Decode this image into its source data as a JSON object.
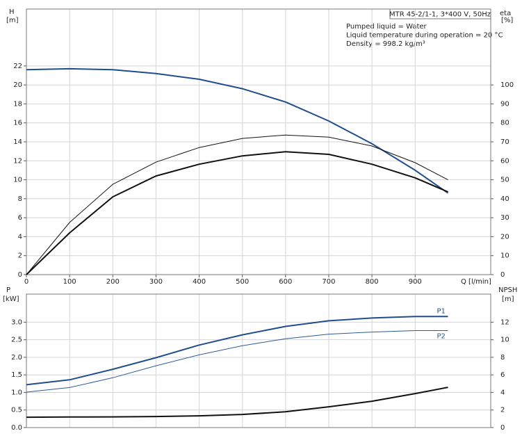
{
  "chart_data": [
    {
      "type": "line",
      "title": "MTR 45-2/1-1, 3*400 V, 50Hz",
      "annotations": [
        "Pumped liquid = Water",
        "Liquid temperature during operation = 20 °C",
        "Density = 998.2 kg/m³"
      ],
      "ylabel": [
        "H",
        "[m]"
      ],
      "y2label": [
        "eta",
        "[%]"
      ],
      "xlabel": "Q [l/min]",
      "xlim": [
        0,
        1075
      ],
      "xticks": [
        0,
        100,
        200,
        300,
        400,
        500,
        600,
        700,
        800,
        900
      ],
      "ylim": [
        0,
        28
      ],
      "yticks": [
        0,
        2,
        4,
        6,
        8,
        10,
        12,
        14,
        16,
        18,
        20,
        22
      ],
      "y2lim": [
        0,
        140
      ],
      "y2ticks": [
        0,
        10,
        20,
        30,
        40,
        50,
        60,
        70,
        80,
        90,
        100
      ],
      "grid": true,
      "x": [
        0,
        100,
        200,
        300,
        400,
        500,
        600,
        700,
        800,
        900,
        976
      ],
      "series": [
        {
          "color": "#1f4e8c",
          "linewidth": 2,
          "axis": "y",
          "values": [
            21.6,
            21.7,
            21.6,
            21.2,
            20.6,
            19.6,
            18.2,
            16.2,
            13.8,
            11.0,
            8.6
          ]
        },
        {
          "color": "#111111",
          "linewidth": 1,
          "axis": "y2",
          "values": [
            0,
            27.5,
            47.6,
            59.3,
            67,
            71.8,
            73.6,
            72.5,
            67.8,
            59,
            50
          ]
        },
        {
          "color": "#111111",
          "linewidth": 2,
          "axis": "y2",
          "values": [
            0,
            22,
            41,
            52,
            58.2,
            62.6,
            64.8,
            63.4,
            58.2,
            51,
            43.6
          ]
        }
      ]
    },
    {
      "type": "line",
      "ylabel": [
        "P",
        "[kW]"
      ],
      "y2label": [
        "NPSH",
        "[m]"
      ],
      "xlim": [
        0,
        1075
      ],
      "ylim": [
        0,
        3.8
      ],
      "yticks": [
        {
          "value": 0,
          "label": "0.0"
        },
        0.5,
        {
          "value": 1,
          "label": "1.0"
        },
        1.5,
        {
          "value": 2,
          "label": "2.0"
        },
        2.5,
        {
          "value": 3,
          "label": "3.0"
        }
      ],
      "y2lim": [
        0,
        15.2
      ],
      "y2ticks": [
        0,
        2,
        4,
        6,
        8,
        10,
        12
      ],
      "grid": true,
      "x": [
        0,
        100,
        200,
        300,
        400,
        500,
        600,
        700,
        800,
        900,
        976
      ],
      "series": [
        {
          "name": "P1",
          "color": "#1f4e8c",
          "linewidth": 2,
          "axis": "y",
          "values": [
            1.22,
            1.36,
            1.66,
            1.99,
            2.35,
            2.64,
            2.88,
            3.04,
            3.12,
            3.16,
            3.16
          ]
        },
        {
          "name": "P2",
          "color": "#2a5a9a",
          "linewidth": 1,
          "axis": "y",
          "values": [
            1.01,
            1.14,
            1.42,
            1.76,
            2.07,
            2.33,
            2.53,
            2.66,
            2.72,
            2.76,
            2.76
          ]
        },
        {
          "color": "#111111",
          "linewidth": 2,
          "axis": "y2",
          "values": [
            1.18,
            1.2,
            1.22,
            1.26,
            1.34,
            1.5,
            1.8,
            2.37,
            3.0,
            3.87,
            4.58
          ]
        }
      ]
    }
  ]
}
